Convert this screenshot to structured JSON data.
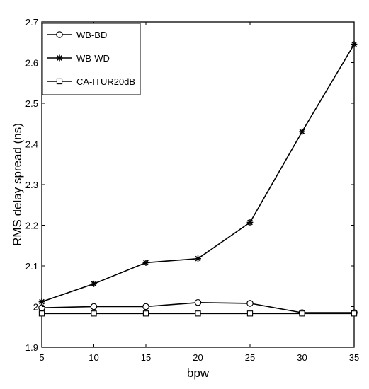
{
  "chart_data": {
    "type": "line",
    "xlabel": "bpw",
    "ylabel": "RMS delay spread (ns)",
    "x": [
      5,
      10,
      15,
      20,
      25,
      30,
      35
    ],
    "xlim": [
      5,
      35
    ],
    "ylim": [
      1.9,
      2.7
    ],
    "x_ticks": [
      "5",
      "10",
      "15",
      "20",
      "25",
      "30",
      "35"
    ],
    "y_ticks": [
      "1.9",
      "2",
      "2.1",
      "2.2",
      "2.3",
      "2.4",
      "2.5",
      "2.6",
      "2.7"
    ],
    "grid": false,
    "legend_position": "top-left",
    "series": [
      {
        "name": "WB-BD",
        "marker": "circle",
        "color": "#000000",
        "values": [
          1.997,
          2.0,
          2.0,
          2.01,
          2.008,
          1.985,
          1.985
        ]
      },
      {
        "name": "WB-WD",
        "marker": "star",
        "color": "#000000",
        "values": [
          2.012,
          2.056,
          2.108,
          2.118,
          2.207,
          2.43,
          2.645
        ]
      },
      {
        "name": "CA-ITUR20dB",
        "marker": "square",
        "color": "#000000",
        "values": [
          1.983,
          1.983,
          1.983,
          1.983,
          1.983,
          1.983,
          1.983
        ]
      }
    ]
  }
}
